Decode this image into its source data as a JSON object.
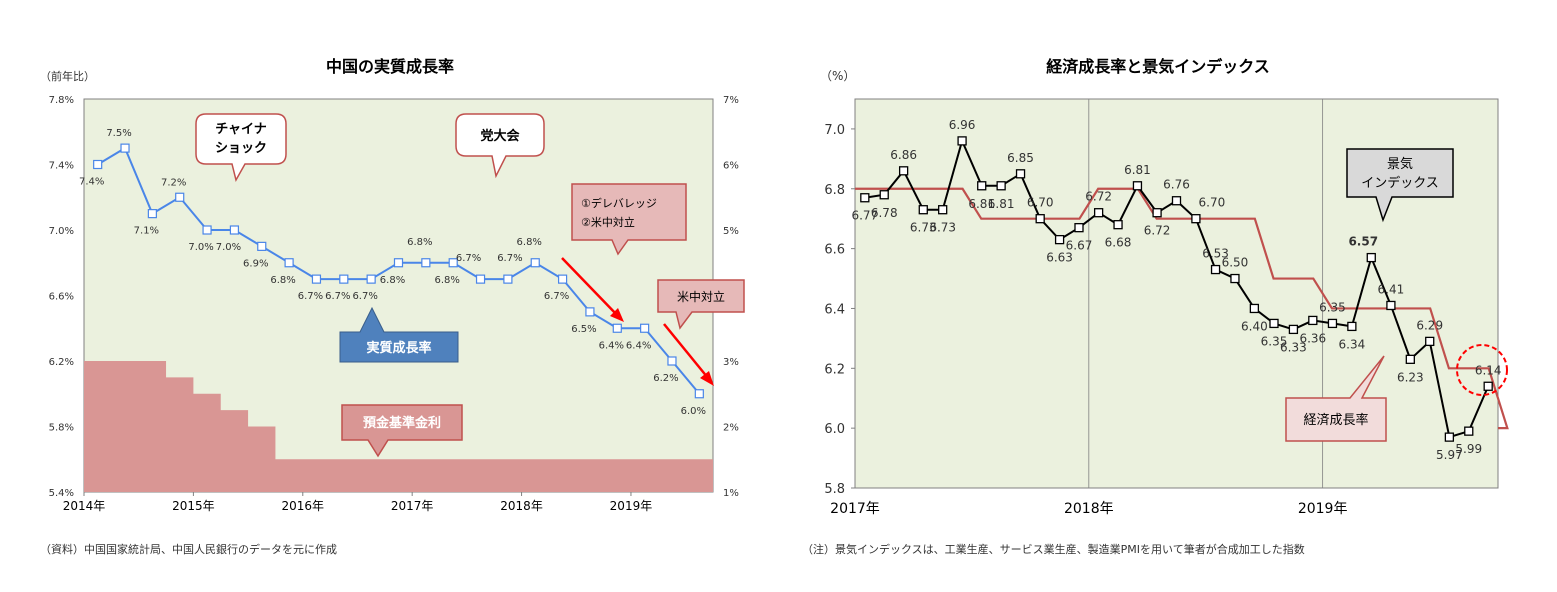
{
  "chart_data": [
    {
      "type": "line",
      "title": "中国の実質成長率",
      "ylabel_left": "（前年比）",
      "y_left_ticks": [
        "7.8%",
        "7.4%",
        "7.0%",
        "6.6%",
        "6.2%",
        "5.8%",
        "5.4%"
      ],
      "y_left_range": [
        5.4,
        7.8
      ],
      "y_right_ticks": [
        "7%",
        "6%",
        "5%",
        "4%",
        "3%",
        "2%",
        "1%"
      ],
      "y_right_range": [
        1,
        7
      ],
      "x_ticks": [
        "2014年",
        "2015年",
        "2016年",
        "2017年",
        "2018年",
        "2019年"
      ],
      "x_range": [
        2014.0,
        2019.75
      ],
      "series": [
        {
          "name": "実質成長率",
          "color": "#4a86e8",
          "x": [
            2014.125,
            2014.375,
            2014.625,
            2014.875,
            2015.125,
            2015.375,
            2015.625,
            2015.875,
            2016.125,
            2016.375,
            2016.625,
            2016.875,
            2017.125,
            2017.375,
            2017.625,
            2017.875,
            2018.125,
            2018.375,
            2018.625,
            2018.875,
            2019.125,
            2019.375,
            2019.625
          ],
          "values": [
            7.4,
            7.5,
            7.1,
            7.2,
            7.0,
            7.0,
            6.9,
            6.8,
            6.7,
            6.7,
            6.7,
            6.8,
            6.8,
            6.8,
            6.7,
            6.7,
            6.8,
            6.7,
            6.5,
            6.4,
            6.4,
            6.2,
            6.0
          ],
          "labels": [
            "7.4%",
            "7.5%",
            "7.1%",
            "7.2%",
            "7.0%",
            "7.0%",
            "6.9%",
            "6.8%",
            "6.7%",
            "6.7%",
            "6.7%",
            "6.8%",
            "6.8%",
            "6.8%",
            "6.7%",
            "6.7%",
            "6.8%",
            "6.7%",
            "6.5%",
            "6.4%",
            "6.4%",
            "6.2%",
            "6.0%"
          ]
        },
        {
          "name": "預金基準金利",
          "color": "#d99694",
          "type": "area",
          "axis": "right",
          "x": [
            2014.0,
            2014.75,
            2015.0,
            2015.25,
            2015.5,
            2015.75,
            2019.75
          ],
          "values": [
            3.0,
            2.75,
            2.5,
            2.25,
            2.0,
            1.5,
            1.5
          ]
        }
      ],
      "callouts": [
        {
          "line1": "チャイナ",
          "line2": "ショック"
        },
        {
          "line1": "党大会",
          "line2": ""
        },
        {
          "line1": "①デレバレッジ",
          "line2": "②米中対立"
        },
        {
          "line1": "米中対立",
          "line2": ""
        }
      ],
      "series_label": "実質成長率",
      "area_label": "預金基準金利",
      "source": "（資料）中国国家統計局、中国人民銀行のデータを元に作成",
      "plot_bg": "#ebf1de",
      "arrow_color": "#ff0000"
    },
    {
      "type": "line",
      "title": "経済成長率と景気インデックス",
      "ylabel": "（%）",
      "y_ticks": [
        "7.0",
        "6.8",
        "6.6",
        "6.4",
        "6.2",
        "6.0",
        "5.8"
      ],
      "y_range": [
        5.8,
        7.1
      ],
      "x_ticks": [
        "2017年",
        "2018年",
        "2019年"
      ],
      "x_range": [
        2017.0,
        2019.75
      ],
      "series": [
        {
          "name": "景気インデックス",
          "color": "#000000",
          "x": [
            2017.042,
            2017.125,
            2017.208,
            2017.292,
            2017.375,
            2017.458,
            2017.542,
            2017.625,
            2017.708,
            2017.792,
            2017.875,
            2017.958,
            2018.042,
            2018.125,
            2018.208,
            2018.292,
            2018.375,
            2018.458,
            2018.542,
            2018.625,
            2018.708,
            2018.792,
            2018.875,
            2018.958,
            2019.042,
            2019.125,
            2019.208,
            2019.292,
            2019.375,
            2019.458,
            2019.542,
            2019.625,
            2019.708
          ],
          "values": [
            6.77,
            6.78,
            6.86,
            6.73,
            6.73,
            6.96,
            6.81,
            6.81,
            6.85,
            6.7,
            6.63,
            6.67,
            6.72,
            6.68,
            6.81,
            6.72,
            6.76,
            6.7,
            6.53,
            6.5,
            6.4,
            6.35,
            6.33,
            6.36,
            6.35,
            6.34,
            6.57,
            6.41,
            6.23,
            6.29,
            5.97,
            5.99,
            6.14
          ],
          "labels": [
            "6.77",
            "6.78",
            "6.86",
            "6.73",
            "6.73",
            "6.96",
            "6.81",
            "6.81",
            "6.85",
            "6.70",
            "6.63",
            "6.67",
            "6.72",
            "6.68",
            "6.81",
            "6.72",
            "6.76",
            "6.70",
            "6.53",
            "6.50",
            "6.40",
            "6.35",
            "6.33",
            "6.36",
            "6.35",
            "6.34",
            "6.57",
            "6.41",
            "6.23",
            "6.29",
            "5.97",
            "5.99",
            "6.14"
          ]
        },
        {
          "name": "経済成長率",
          "color": "#c0504d",
          "x": [
            2017.0,
            2017.5,
            2018.0,
            2018.25,
            2018.5,
            2018.75,
            2019.0,
            2019.25,
            2019.5,
            2019.75
          ],
          "values": [
            6.8,
            6.7,
            6.8,
            6.7,
            6.5,
            6.4,
            6.4,
            6.2,
            6.0,
            6.0
          ]
        }
      ],
      "callouts": [
        {
          "line1": "景気",
          "line2": "インデックス"
        },
        {
          "line1": "経済成長率",
          "line2": ""
        }
      ],
      "note": "（注）景気インデックスは、工業生産、サービス業生産、製造業PMIを用いて筆者が合成加工した指数",
      "plot_bg": "#ebf1de"
    }
  ]
}
